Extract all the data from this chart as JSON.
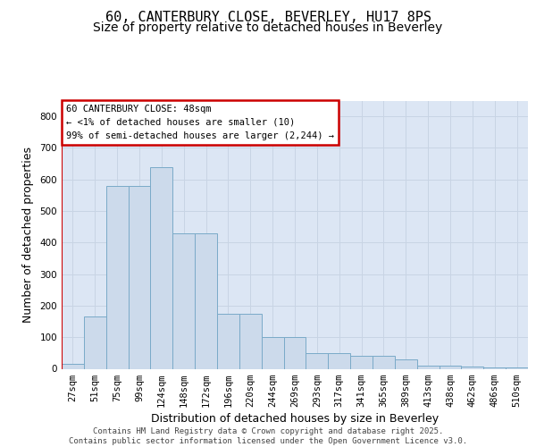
{
  "title_line1": "60, CANTERBURY CLOSE, BEVERLEY, HU17 8PS",
  "title_line2": "Size of property relative to detached houses in Beverley",
  "xlabel": "Distribution of detached houses by size in Beverley",
  "ylabel": "Number of detached properties",
  "categories": [
    "27sqm",
    "51sqm",
    "75sqm",
    "99sqm",
    "124sqm",
    "148sqm",
    "172sqm",
    "196sqm",
    "220sqm",
    "244sqm",
    "269sqm",
    "293sqm",
    "317sqm",
    "341sqm",
    "365sqm",
    "389sqm",
    "413sqm",
    "438sqm",
    "462sqm",
    "486sqm",
    "510sqm"
  ],
  "values": [
    15,
    165,
    580,
    580,
    640,
    430,
    430,
    175,
    175,
    100,
    100,
    50,
    50,
    40,
    40,
    30,
    10,
    10,
    8,
    5,
    5
  ],
  "bar_color": "#ccdaeb",
  "bar_edge_color": "#7aaac8",
  "highlight_color": "#cc0000",
  "annotation_text": "60 CANTERBURY CLOSE: 48sqm\n← <1% of detached houses are smaller (10)\n99% of semi-detached houses are larger (2,244) →",
  "annotation_box_color": "#ffffff",
  "annotation_box_edge": "#cc0000",
  "grid_color": "#c8d4e4",
  "background_color": "#dce6f4",
  "ylim": [
    0,
    850
  ],
  "yticks": [
    0,
    100,
    200,
    300,
    400,
    500,
    600,
    700,
    800
  ],
  "footer_text": "Contains HM Land Registry data © Crown copyright and database right 2025.\nContains public sector information licensed under the Open Government Licence v3.0.",
  "title_fontsize": 11,
  "subtitle_fontsize": 10,
  "tick_fontsize": 7.5,
  "label_fontsize": 9,
  "footer_fontsize": 6.5
}
